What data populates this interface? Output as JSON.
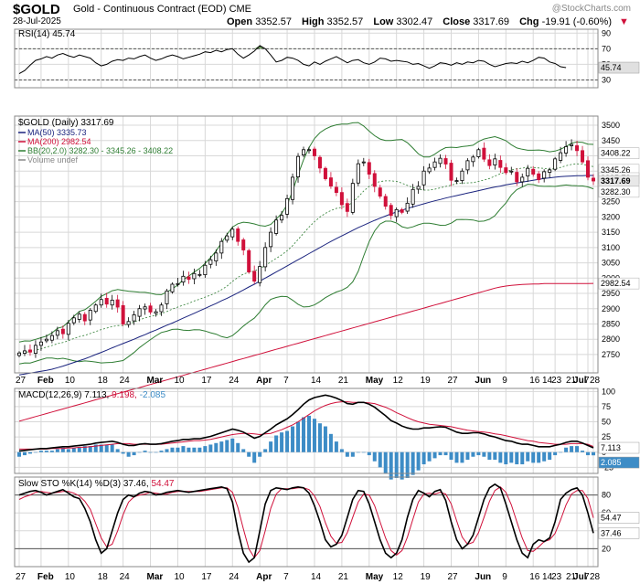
{
  "header": {
    "symbol": "$GOLD",
    "name": "Gold - Continuous Contract (EOD)",
    "exchange": "CME",
    "date": "28-Jul-2025",
    "open_label": "Open",
    "open": "3352.57",
    "high_label": "High",
    "high": "3352.57",
    "low_label": "Low",
    "low": "3302.47",
    "close_label": "Close",
    "close": "3317.69",
    "chg_label": "Chg",
    "chg": "-19.91 (-0.60%)",
    "watermark": "@StockCharts.com"
  },
  "colors": {
    "up": "#000000",
    "down": "#d0103a",
    "ma50": "#1a237e",
    "ma200": "#d0103a",
    "bb": "#2e7d32",
    "macd_hist": "#3d8cc6",
    "grid": "#d8d8d8"
  },
  "chart_data": [
    {
      "type": "line",
      "title": "RSI(14) 45.74",
      "series": [
        {
          "name": "RSI(14)",
          "values": [
            38,
            42,
            49,
            55,
            57,
            60,
            58,
            62,
            64,
            61,
            59,
            62,
            60,
            58,
            52,
            48,
            50,
            54,
            56,
            55,
            58,
            57,
            60,
            62,
            58,
            55,
            57,
            60,
            62,
            60,
            57,
            59,
            61,
            63,
            66,
            65,
            68,
            66,
            69,
            70,
            63,
            58,
            62,
            67,
            74,
            70,
            62,
            53,
            55,
            59,
            58,
            55,
            50,
            48,
            53,
            50,
            54,
            57,
            60,
            56,
            52,
            55,
            56,
            52,
            50,
            53,
            58,
            57,
            54,
            55,
            54,
            53,
            50,
            51,
            48,
            45,
            48,
            52,
            51,
            49,
            52,
            50,
            53,
            52,
            55,
            54,
            50,
            47,
            49,
            51,
            52,
            51,
            54,
            52,
            55,
            59,
            58,
            53,
            51,
            47,
            45.74
          ]
        }
      ],
      "ylim": [
        20,
        95
      ],
      "ticks": [
        90,
        70,
        50,
        30
      ],
      "last_label": "45.74"
    },
    {
      "type": "candlestick",
      "title": "$GOLD (Daily) 3317.69",
      "legend": [
        "MA(50) 3335.73",
        "MA(200) 2982.54",
        "BB(20,2.0) 3282.30 - 3345.26 - 3408.22",
        "Volume undef"
      ],
      "ylim": [
        2690,
        3530
      ],
      "ticks": [
        3500,
        3450,
        3400,
        3350,
        3300,
        3250,
        3200,
        3150,
        3100,
        3050,
        3000,
        2950,
        2900,
        2850,
        2800,
        2750
      ],
      "close": [
        2755,
        2762,
        2758,
        2780,
        2791,
        2800,
        2812,
        2828,
        2818,
        2852,
        2870,
        2882,
        2860,
        2895,
        2912,
        2930,
        2915,
        2928,
        2905,
        2850,
        2858,
        2880,
        2900,
        2906,
        2889,
        2890,
        2912,
        2958,
        2980,
        2982,
        3006,
        2996,
        3015,
        3012,
        3042,
        3060,
        3082,
        3120,
        3138,
        3160,
        3120,
        3092,
        3020,
        2990,
        3038,
        3100,
        3150,
        3190,
        3205,
        3260,
        3330,
        3398,
        3420,
        3420,
        3400,
        3360,
        3325,
        3301,
        3280,
        3240,
        3218,
        3310,
        3374,
        3380,
        3340,
        3300,
        3268,
        3235,
        3205,
        3224,
        3215,
        3245,
        3290,
        3300,
        3350,
        3360,
        3380,
        3392,
        3373,
        3320,
        3319,
        3350,
        3384,
        3396,
        3420,
        3389,
        3368,
        3390,
        3362,
        3345,
        3350,
        3315,
        3330,
        3359,
        3340,
        3322,
        3348,
        3354,
        3390,
        3410,
        3430,
        3437,
        3417,
        3380,
        3330,
        3317.69
      ],
      "ma50": [
        2683,
        2686,
        2689,
        2692,
        2695,
        2698,
        2702,
        2707,
        2712,
        2718,
        2724,
        2730,
        2736,
        2743,
        2750,
        2757,
        2764,
        2772,
        2779,
        2786,
        2793,
        2800,
        2808,
        2815,
        2823,
        2830,
        2838,
        2846,
        2853,
        2861,
        2869,
        2877,
        2885,
        2893,
        2901,
        2909,
        2917,
        2926,
        2934,
        2943,
        2952,
        2961,
        2971,
        2980,
        2990,
        3000,
        3010,
        3020,
        3030,
        3040,
        3050,
        3060,
        3070,
        3080,
        3090,
        3100,
        3110,
        3120,
        3129,
        3138,
        3147,
        3156,
        3165,
        3173,
        3181,
        3189,
        3196,
        3203,
        3210,
        3216,
        3222,
        3228,
        3233,
        3238,
        3243,
        3248,
        3253,
        3257,
        3262,
        3266,
        3270,
        3274,
        3278,
        3282,
        3286,
        3290,
        3294,
        3298,
        3301,
        3305,
        3308,
        3311,
        3314,
        3317,
        3320,
        3323,
        3326,
        3328,
        3330,
        3332,
        3333,
        3334,
        3335,
        3335,
        3336,
        3335.73
      ],
      "ma200": [
        2532,
        2537,
        2542,
        2547,
        2552,
        2557,
        2562,
        2567,
        2572,
        2577,
        2582,
        2587,
        2592,
        2597,
        2602,
        2607,
        2612,
        2617,
        2622,
        2627,
        2632,
        2637,
        2642,
        2647,
        2652,
        2657,
        2662,
        2667,
        2672,
        2677,
        2682,
        2687,
        2692,
        2697,
        2702,
        2707,
        2712,
        2717,
        2722,
        2727,
        2732,
        2737,
        2742,
        2747,
        2752,
        2757,
        2762,
        2767,
        2772,
        2777,
        2782,
        2787,
        2792,
        2797,
        2802,
        2807,
        2812,
        2817,
        2822,
        2827,
        2832,
        2837,
        2842,
        2847,
        2852,
        2857,
        2862,
        2867,
        2872,
        2877,
        2882,
        2887,
        2892,
        2897,
        2902,
        2907,
        2912,
        2917,
        2922,
        2927,
        2932,
        2937,
        2942,
        2947,
        2952,
        2957,
        2962,
        2967,
        2971,
        2974,
        2976,
        2978,
        2979,
        2980,
        2981,
        2981,
        2982,
        2982,
        2982,
        2982,
        2982,
        2982,
        2982,
        2982,
        2982,
        2982.54
      ],
      "last_labels": [
        "3408.22",
        "3345.26",
        "3335.73",
        "3317.69",
        "3282.30",
        "2982.54"
      ]
    },
    {
      "type": "line",
      "title": "MACD(12,26,9) 7.113, 9.198, -2.085",
      "series": [
        {
          "name": "MACD(12,26,9)",
          "values": [
            2,
            3,
            4,
            5,
            6,
            6,
            7,
            8,
            9,
            9,
            10,
            11,
            12,
            13,
            15,
            16,
            17,
            18,
            16,
            13,
            11,
            11,
            13,
            14,
            13,
            13,
            14,
            16,
            18,
            19,
            21,
            21,
            22,
            22,
            24,
            26,
            29,
            32,
            35,
            38,
            36,
            33,
            28,
            23,
            26,
            32,
            38,
            45,
            50,
            55,
            62,
            70,
            79,
            86,
            90,
            92,
            94,
            92,
            89,
            85,
            80,
            79,
            82,
            82,
            79,
            74,
            67,
            60,
            52,
            48,
            43,
            40,
            38,
            38,
            40,
            40,
            41,
            42,
            41,
            37,
            33,
            31,
            31,
            32,
            32,
            30,
            27,
            25,
            22,
            19,
            18,
            15,
            13,
            13,
            11,
            9,
            9,
            9,
            11,
            13,
            16,
            18,
            18,
            15,
            11,
            7.113
          ]
        },
        {
          "name": "Signal",
          "values": [
            5,
            5,
            5,
            5,
            5,
            5,
            6,
            6,
            6,
            7,
            7,
            8,
            8,
            9,
            10,
            11,
            12,
            13,
            14,
            14,
            14,
            13,
            13,
            13,
            13,
            13,
            13,
            14,
            15,
            16,
            17,
            18,
            19,
            19,
            20,
            21,
            23,
            25,
            27,
            29,
            30,
            31,
            31,
            30,
            29,
            30,
            31,
            34,
            37,
            41,
            45,
            50,
            56,
            62,
            68,
            73,
            77,
            80,
            82,
            83,
            83,
            82,
            82,
            82,
            81,
            80,
            77,
            74,
            70,
            65,
            61,
            57,
            53,
            50,
            48,
            46,
            45,
            44,
            43,
            42,
            40,
            38,
            36,
            35,
            34,
            33,
            32,
            30,
            29,
            27,
            25,
            23,
            21,
            19,
            18,
            16,
            15,
            14,
            13,
            13,
            13,
            14,
            14,
            14,
            13,
            9.198
          ]
        },
        {
          "name": "Histogram",
          "values": [
            -3,
            -2,
            -1,
            0,
            1,
            1,
            1,
            2,
            3,
            2,
            3,
            3,
            4,
            4,
            5,
            5,
            5,
            5,
            2,
            -1,
            -3,
            -2,
            0,
            1,
            0,
            0,
            1,
            2,
            3,
            3,
            4,
            3,
            3,
            3,
            4,
            5,
            6,
            7,
            8,
            9,
            6,
            2,
            -3,
            -7,
            -3,
            2,
            7,
            11,
            13,
            14,
            17,
            20,
            23,
            24,
            22,
            19,
            17,
            12,
            7,
            2,
            -3,
            -3,
            0,
            0,
            -2,
            -6,
            -10,
            -14,
            -18,
            -17,
            -18,
            -17,
            -15,
            -12,
            -8,
            -6,
            -4,
            -2,
            -2,
            -5,
            -7,
            -7,
            -5,
            -3,
            -2,
            -3,
            -5,
            -5,
            -7,
            -8,
            -7,
            -8,
            -8,
            -6,
            -7,
            -7,
            -6,
            -5,
            -2,
            0,
            3,
            4,
            4,
            1,
            -2,
            -2.085
          ]
        }
      ],
      "ylim": [
        -35,
        105
      ],
      "ticks": [
        100,
        75,
        50,
        25,
        0,
        -25
      ],
      "last_labels": [
        "7.113",
        "2.085"
      ]
    },
    {
      "type": "line",
      "title": "Slow STO %K(14) %D(3) 37.46, 54.47",
      "series": [
        {
          "name": "%K(14)",
          "values": [
            80,
            82,
            84,
            85,
            83,
            80,
            82,
            84,
            86,
            82,
            78,
            76,
            65,
            50,
            30,
            15,
            20,
            40,
            60,
            75,
            80,
            78,
            82,
            84,
            83,
            80,
            81,
            83,
            84,
            85,
            84,
            83,
            84,
            85,
            86,
            87,
            88,
            89,
            87,
            72,
            40,
            15,
            5,
            10,
            40,
            70,
            85,
            88,
            87,
            86,
            88,
            89,
            88,
            82,
            68,
            50,
            30,
            22,
            25,
            35,
            55,
            75,
            85,
            84,
            70,
            50,
            30,
            15,
            10,
            15,
            30,
            55,
            75,
            85,
            82,
            78,
            84,
            86,
            74,
            50,
            30,
            20,
            25,
            35,
            55,
            75,
            88,
            92,
            88,
            70,
            50,
            30,
            15,
            10,
            25,
            30,
            28,
            32,
            50,
            75,
            82,
            86,
            88,
            80,
            60,
            37.46
          ]
        },
        {
          "name": "%D(3)",
          "values": [
            75,
            78,
            80,
            83,
            84,
            83,
            82,
            83,
            84,
            84,
            82,
            79,
            73,
            64,
            48,
            32,
            22,
            25,
            40,
            58,
            72,
            78,
            80,
            81,
            83,
            82,
            81,
            81,
            83,
            84,
            84,
            84,
            84,
            84,
            85,
            86,
            87,
            88,
            88,
            83,
            66,
            42,
            20,
            10,
            18,
            40,
            65,
            81,
            87,
            87,
            87,
            88,
            88,
            86,
            79,
            67,
            49,
            34,
            26,
            27,
            38,
            55,
            72,
            81,
            80,
            68,
            50,
            32,
            18,
            13,
            18,
            33,
            53,
            72,
            81,
            82,
            81,
            83,
            81,
            70,
            51,
            33,
            25,
            27,
            38,
            55,
            73,
            85,
            89,
            83,
            69,
            50,
            32,
            18,
            17,
            22,
            28,
            30,
            37,
            52,
            69,
            81,
            85,
            85,
            76,
            54.47
          ]
        }
      ],
      "ylim": [
        0,
        100
      ],
      "ticks": [
        80,
        60,
        40,
        20
      ],
      "last_labels": [
        "54.47",
        "37.46"
      ]
    }
  ],
  "x_labels": [
    "27",
    "Feb",
    "10",
    "18",
    "24",
    "Mar",
    "10",
    "17",
    "24",
    "Apr",
    "7",
    "14",
    "21",
    "May",
    "12",
    "19",
    "27",
    "Jun",
    "9",
    "16",
    "23",
    "Jul",
    "7",
    "14",
    "21",
    "28"
  ],
  "x_label_idx": [
    0,
    4,
    9,
    15,
    19,
    24,
    29,
    34,
    39,
    44,
    49,
    54,
    59,
    64,
    69,
    74,
    79,
    84,
    89,
    94,
    98,
    102,
    104,
    105,
    105,
    105
  ]
}
